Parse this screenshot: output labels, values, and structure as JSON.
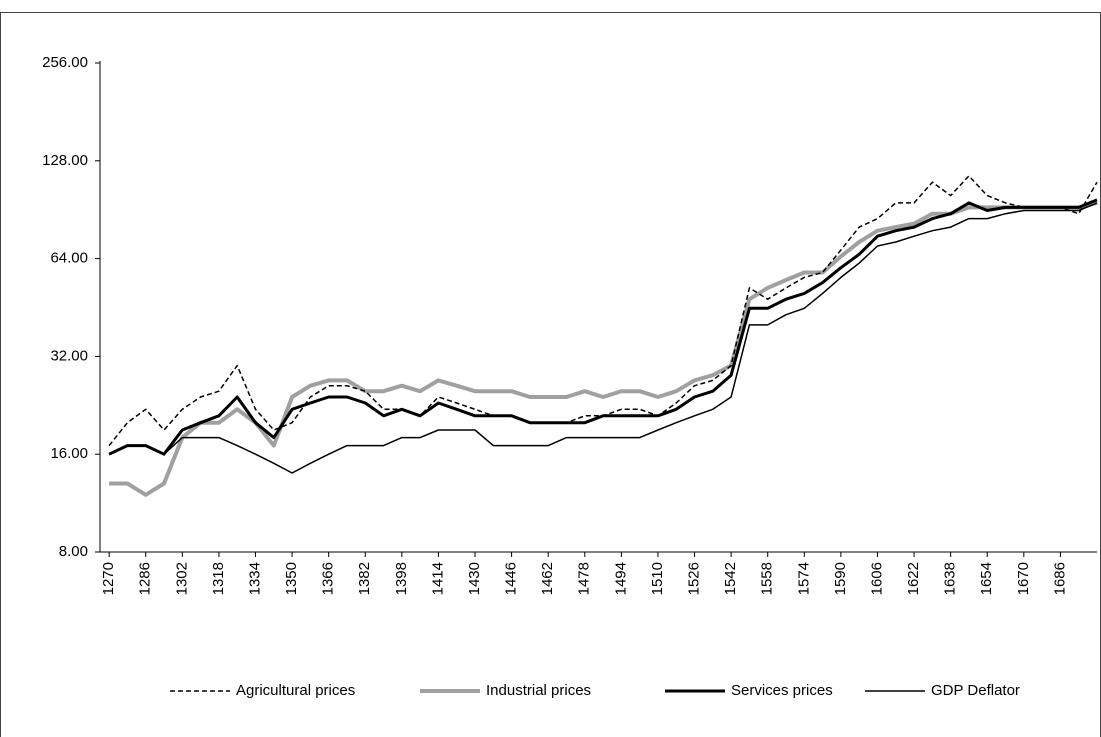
{
  "chart_data": {
    "type": "line",
    "x": [
      1270,
      1278,
      1286,
      1294,
      1302,
      1310,
      1318,
      1326,
      1334,
      1342,
      1350,
      1358,
      1366,
      1374,
      1382,
      1390,
      1398,
      1406,
      1414,
      1422,
      1430,
      1438,
      1446,
      1454,
      1462,
      1470,
      1478,
      1486,
      1494,
      1502,
      1510,
      1518,
      1526,
      1534,
      1542,
      1550,
      1558,
      1566,
      1574,
      1582,
      1590,
      1598,
      1606,
      1614,
      1622,
      1630,
      1638,
      1646,
      1654,
      1662,
      1670,
      1678,
      1686,
      1694,
      1702
    ],
    "series": [
      {
        "name": "Agricultural prices",
        "color": "#000000",
        "line_style": "dashed",
        "width": 1.5,
        "values": [
          17,
          20,
          22,
          19,
          22,
          24,
          25,
          30,
          22,
          19,
          20,
          24,
          26,
          26,
          25,
          22,
          22,
          21,
          24,
          23,
          22,
          21,
          21,
          20,
          20,
          20,
          21,
          21,
          22,
          22,
          21,
          23,
          26,
          27,
          30,
          52,
          48,
          52,
          56,
          58,
          68,
          80,
          85,
          95,
          95,
          110,
          100,
          115,
          100,
          95,
          92,
          92,
          92,
          88,
          110
        ]
      },
      {
        "name": "Industrial prices",
        "color": "#a0a0a0",
        "line_style": "solid",
        "width": 4,
        "values": [
          13,
          13,
          12,
          13,
          18,
          20,
          20,
          22,
          20,
          17,
          24,
          26,
          27,
          27,
          25,
          25,
          26,
          25,
          27,
          26,
          25,
          25,
          25,
          24,
          24,
          24,
          25,
          24,
          25,
          25,
          24,
          25,
          27,
          28,
          30,
          48,
          52,
          55,
          58,
          58,
          65,
          72,
          78,
          80,
          82,
          88,
          88,
          92,
          92,
          92,
          92,
          92,
          92,
          92,
          95
        ]
      },
      {
        "name": "Services prices",
        "color": "#000000",
        "line_style": "solid",
        "width": 3,
        "values": [
          16,
          17,
          17,
          16,
          19,
          20,
          21,
          24,
          20,
          18,
          22,
          23,
          24,
          24,
          23,
          21,
          22,
          21,
          23,
          22,
          21,
          21,
          21,
          20,
          20,
          20,
          20,
          21,
          21,
          21,
          21,
          22,
          24,
          25,
          28,
          45,
          45,
          48,
          50,
          54,
          60,
          66,
          75,
          78,
          80,
          85,
          88,
          95,
          90,
          92,
          92,
          92,
          92,
          92,
          97
        ]
      },
      {
        "name": "GDP Deflator",
        "color": "#000000",
        "line_style": "solid",
        "width": 1.5,
        "values": [
          16,
          17,
          17,
          16,
          18,
          18,
          18,
          17,
          16,
          15,
          14,
          15,
          16,
          17,
          17,
          17,
          18,
          18,
          19,
          19,
          19,
          17,
          17,
          17,
          17,
          18,
          18,
          18,
          18,
          18,
          19,
          20,
          21,
          22,
          24,
          40,
          40,
          43,
          45,
          50,
          56,
          62,
          70,
          72,
          75,
          78,
          80,
          85,
          85,
          88,
          90,
          90,
          90,
          90,
          95
        ]
      }
    ],
    "xlim": [
      1266,
      1702
    ],
    "xticks": [
      1270,
      1286,
      1302,
      1318,
      1334,
      1350,
      1366,
      1382,
      1398,
      1414,
      1430,
      1446,
      1462,
      1478,
      1494,
      1510,
      1526,
      1542,
      1558,
      1574,
      1590,
      1606,
      1622,
      1638,
      1654,
      1670,
      1686
    ],
    "ylim": [
      8,
      256
    ],
    "yticks": [
      {
        "value": 8,
        "label": "8.00"
      },
      {
        "value": 16,
        "label": "16.00"
      },
      {
        "value": 32,
        "label": "32.00"
      },
      {
        "value": 64,
        "label": "64.00"
      },
      {
        "value": 128,
        "label": "128.00"
      },
      {
        "value": 256,
        "label": "256.00"
      }
    ],
    "log_scale": true,
    "grid": false,
    "legend": "bottom"
  }
}
